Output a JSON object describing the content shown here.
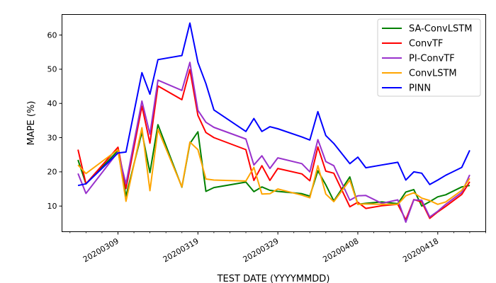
{
  "chart_data": {
    "type": "line",
    "xlabel": "TEST DATE (YYYYMMDD)",
    "ylabel": "MAPE (%)",
    "xlim": [
      "2020-03-02",
      "2020-04-24"
    ],
    "ylim": [
      2.5,
      66
    ],
    "x_tick_values": [
      "2020-03-09",
      "2020-03-19",
      "2020-03-29",
      "2020-04-08",
      "2020-04-18"
    ],
    "x_tick_labels": [
      "20200309",
      "20200319",
      "20200329",
      "20200408",
      "20200418"
    ],
    "y_ticks": [
      10,
      20,
      30,
      40,
      50,
      60
    ],
    "y_tick_labels": [
      "10",
      "20",
      "30",
      "40",
      "50",
      "60"
    ],
    "grid": false,
    "legend_position": "upper-right",
    "x": [
      "2020-03-04",
      "2020-03-05",
      "2020-03-09",
      "2020-03-10",
      "2020-03-12",
      "2020-03-13",
      "2020-03-14",
      "2020-03-17",
      "2020-03-18",
      "2020-03-19",
      "2020-03-20",
      "2020-03-21",
      "2020-03-25",
      "2020-03-26",
      "2020-03-27",
      "2020-03-28",
      "2020-03-29",
      "2020-04-01",
      "2020-04-02",
      "2020-04-03",
      "2020-04-04",
      "2020-04-05",
      "2020-04-07",
      "2020-04-08",
      "2020-04-09",
      "2020-04-11",
      "2020-04-13",
      "2020-04-14",
      "2020-04-15",
      "2020-04-16",
      "2020-04-17",
      "2020-04-18",
      "2020-04-19",
      "2020-04-21",
      "2020-04-22"
    ],
    "series": [
      {
        "name": "SA-ConvLSTM",
        "color": "#008000",
        "values": [
          23.5,
          16.5,
          26.2,
          12.9,
          31.6,
          19.8,
          33.8,
          15.5,
          28.3,
          31.7,
          14.3,
          15.4,
          17,
          14.2,
          15.6,
          14.6,
          14.3,
          13.6,
          12.9,
          20.3,
          16.2,
          11.5,
          18.5,
          10.5,
          10.8,
          11.2,
          10.7,
          14.1,
          14.8,
          10,
          11.3,
          12.7,
          13.3,
          15.6,
          16
        ]
      },
      {
        "name": "ConvTF",
        "color": "#ff0000",
        "values": [
          26.5,
          16.5,
          27.2,
          15.1,
          39.2,
          28.4,
          45.1,
          41.1,
          49.9,
          36.5,
          31.5,
          30,
          26.5,
          17.5,
          21.8,
          17.5,
          21,
          19.4,
          17.4,
          27.3,
          20.2,
          19.6,
          9.8,
          11.1,
          9.3,
          10.1,
          10.5,
          6,
          11.9,
          11.2,
          6.4,
          8.3,
          9.9,
          13.4,
          17.1
        ]
      },
      {
        "name": "PI-ConvTF",
        "color": "#9932cc",
        "values": [
          19.5,
          13.7,
          25.8,
          16.5,
          40.7,
          31,
          46.8,
          43.8,
          52,
          38,
          34.5,
          33,
          29.6,
          22,
          24.7,
          21,
          24.1,
          22.4,
          20,
          29.4,
          23,
          21.8,
          11.7,
          13,
          13.1,
          10.8,
          11.8,
          5.3,
          11.8,
          11.7,
          6.8,
          8.5,
          10.5,
          14,
          19.1
        ]
      },
      {
        "name": "ConvLSTM",
        "color": "#ffa500",
        "values": [
          22,
          19.5,
          26.5,
          11.4,
          32.9,
          14.5,
          32.4,
          15.6,
          28.7,
          26.5,
          17.9,
          17.6,
          17.3,
          21.3,
          13.5,
          13.6,
          15,
          13.2,
          12.4,
          21.8,
          13.5,
          11.3,
          17.6,
          10.5,
          10.6,
          10.5,
          10.5,
          13,
          13.9,
          12.3,
          11.6,
          10.5,
          11.2,
          14.6,
          18.1
        ]
      },
      {
        "name": "PINN",
        "color": "#0000ff",
        "values": [
          16,
          16.5,
          25.5,
          25.8,
          49,
          42.7,
          52.8,
          54,
          63.5,
          52,
          45.8,
          38.1,
          31.8,
          35.6,
          31.8,
          33.2,
          32.6,
          30.2,
          29.3,
          37.6,
          30.6,
          28.3,
          22.4,
          24.3,
          21.2,
          22,
          22.8,
          17.6,
          20,
          19.6,
          16.3,
          17.6,
          19,
          21.3,
          26.3
        ]
      }
    ]
  }
}
